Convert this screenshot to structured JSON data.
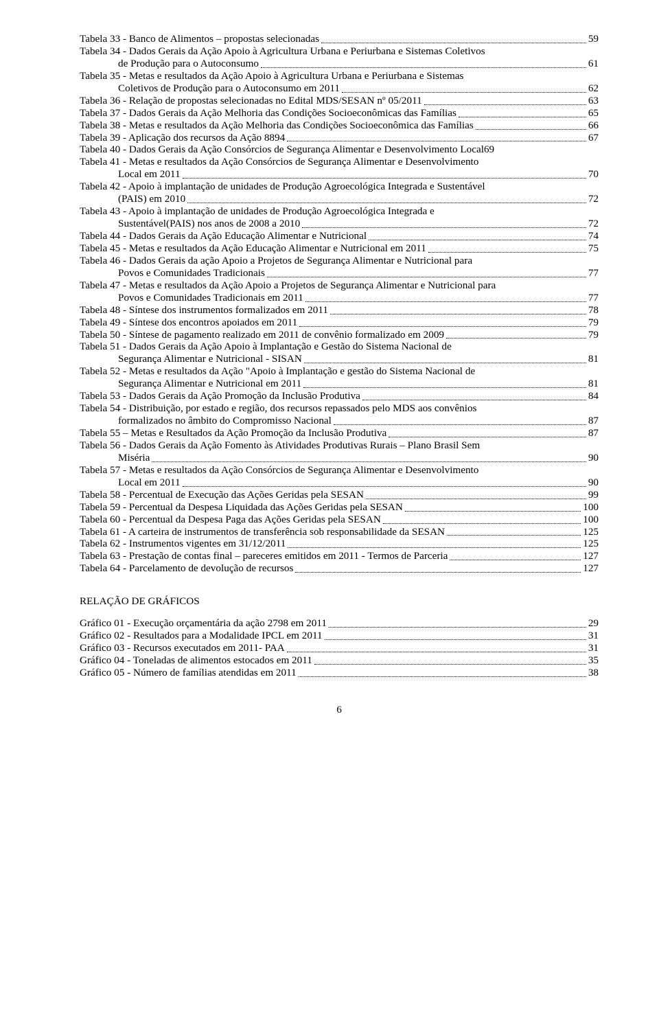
{
  "toc": [
    {
      "label": "Tabela 33 - Banco de Alimentos – propostas selecionadas",
      "page": "59"
    },
    {
      "label": "Tabela 34 - Dados Gerais da Ação Apoio à Agricultura Urbana e Periurbana e Sistemas Coletivos",
      "cont": "de Produção para o Autoconsumo",
      "page": "61"
    },
    {
      "label": "Tabela 35 - Metas e resultados da Ação Apoio à Agricultura Urbana e Periurbana e Sistemas",
      "cont": "Coletivos de Produção para o Autoconsumo em 2011",
      "page": "62"
    },
    {
      "label": "Tabela 36 - Relação de propostas selecionadas no Edital MDS/SESAN nº 05/2011",
      "page": "63"
    },
    {
      "label": "Tabela 37 - Dados Gerais da Ação Melhoria das Condições Socioeconômicas das Famílias",
      "page": "65"
    },
    {
      "label": "Tabela 38 - Metas e resultados da Ação Melhoria das Condições Socioeconômica das Famílias",
      "page": "66"
    },
    {
      "label": "Tabela 39 - Aplicação dos recursos da Ação 8894",
      "page": "67"
    },
    {
      "label": "Tabela 40 - Dados Gerais da Ação Consórcios de Segurança Alimentar e Desenvolvimento Local",
      "page": "69",
      "tight": true
    },
    {
      "label": "Tabela 41 - Metas e resultados da Ação Consórcios de Segurança Alimentar e Desenvolvimento",
      "cont": "Local em 2011",
      "page": "70"
    },
    {
      "label": "Tabela 42 - Apoio à implantação de unidades de Produção Agroecológica Integrada e Sustentável",
      "cont": "(PAIS) em 2010",
      "page": "72"
    },
    {
      "label": "Tabela 43 - Apoio à implantação de unidades de Produção Agroecológica Integrada e",
      "cont": "Sustentável(PAIS) nos anos de 2008 a 2010",
      "page": "72"
    },
    {
      "label": "Tabela 44 - Dados Gerais da Ação Educação Alimentar e Nutricional",
      "page": "74"
    },
    {
      "label": "Tabela 45 - Metas e resultados da Ação Educação Alimentar e Nutricional em 2011",
      "page": "75"
    },
    {
      "label": "Tabela 46 - Dados Gerais da ação Apoio a Projetos de Segurança Alimentar e Nutricional para",
      "cont": "Povos e Comunidades Tradicionais",
      "page": "77"
    },
    {
      "label": "Tabela 47 - Metas e resultados da Ação Apoio a Projetos de Segurança Alimentar e Nutricional para",
      "cont": "Povos e Comunidades Tradicionais em 2011",
      "page": "77"
    },
    {
      "label": "Tabela 48 - Síntese dos instrumentos formalizados em 2011",
      "page": "78"
    },
    {
      "label": "Tabela 49 - Síntese dos encontros apoiados em 2011",
      "page": "79"
    },
    {
      "label": "Tabela 50 - Síntese de pagamento realizado em 2011 de convênio formalizado em 2009",
      "page": "79"
    },
    {
      "label": "Tabela 51 - Dados Gerais da Ação Apoio à Implantação e Gestão do Sistema Nacional de",
      "cont": "Segurança Alimentar e Nutricional - SISAN",
      "page": "81"
    },
    {
      "label": "Tabela 52 - Metas e resultados da Ação \"Apoio à Implantação e gestão do Sistema Nacional de",
      "cont": "Segurança Alimentar e Nutricional em 2011",
      "page": "81"
    },
    {
      "label": "Tabela 53 - Dados Gerais da Ação Promoção da Inclusão Produtiva",
      "page": "84"
    },
    {
      "label": "Tabela 54 - Distribuição, por estado e região, dos recursos repassados pelo MDS aos convênios",
      "cont": "formalizados no âmbito do Compromisso Nacional",
      "page": "87"
    },
    {
      "label": "Tabela 55 – Metas e Resultados da Ação Promoção da Inclusão Produtiva",
      "page": "87"
    },
    {
      "label": "Tabela 56 - Dados Gerais da Ação Fomento às Atividades Produtivas Rurais – Plano Brasil Sem",
      "cont": "Miséria",
      "page": "90"
    },
    {
      "label": "Tabela 57 - Metas e resultados da Ação Consórcios de Segurança Alimentar e Desenvolvimento",
      "cont": "Local em 2011",
      "page": "90"
    },
    {
      "label": "Tabela 58 - Percentual de Execução das Ações Geridas pela SESAN",
      "page": "99"
    },
    {
      "label": "Tabela 59 - Percentual da Despesa Liquidada das Ações Geridas pela SESAN",
      "page": "100"
    },
    {
      "label": "Tabela 60 - Percentual da Despesa Paga das Ações Geridas pela SESAN",
      "page": "100"
    },
    {
      "label": "Tabela 61 - A carteira de instrumentos de transferência sob responsabilidade da SESAN",
      "page": "125"
    },
    {
      "label": "Tabela 62 - Instrumentos vigentes em 31/12/2011",
      "page": "125"
    },
    {
      "label": "Tabela 63 - Prestação de contas final – pareceres emitidos em 2011 - Termos de Parceria",
      "page": "127"
    },
    {
      "label": "Tabela 64 - Parcelamento de devolução de recursos",
      "page": "127"
    }
  ],
  "section_title": "RELAÇÃO DE GRÁFICOS",
  "graficos": [
    {
      "label": "Gráfico 01 - Execução orçamentária da ação 2798 em 2011",
      "page": "29"
    },
    {
      "label": "Gráfico 02 - Resultados para a Modalidade IPCL em 2011",
      "page": "31"
    },
    {
      "label": "Gráfico 03 - Recursos executados em 2011- PAA",
      "page": "31"
    },
    {
      "label": "Gráfico 04 - Toneladas de alimentos estocados em 2011",
      "page": "35"
    },
    {
      "label": "Gráfico 05 - Número de famílias atendidas em 2011",
      "page": "38"
    }
  ],
  "page_number": "6"
}
